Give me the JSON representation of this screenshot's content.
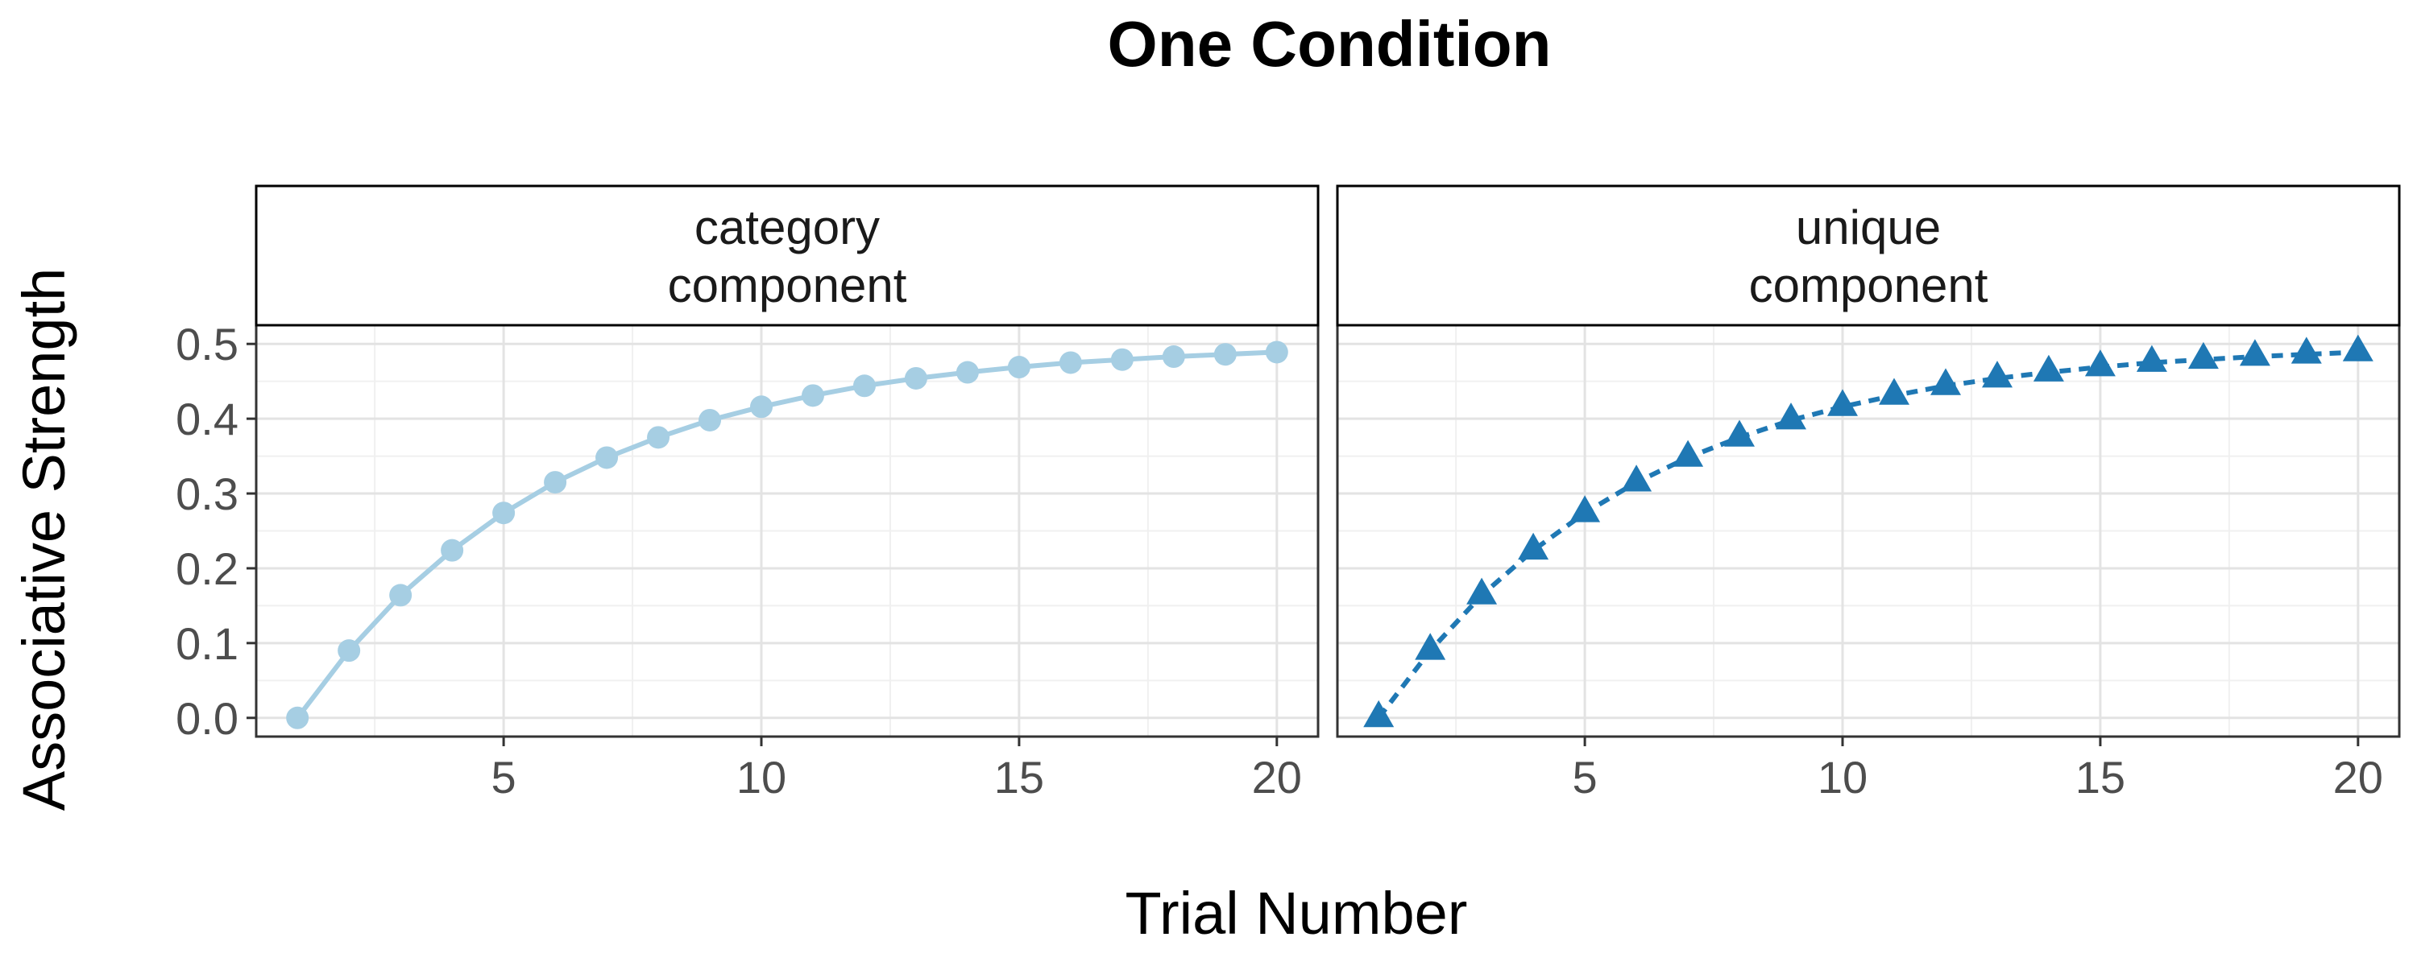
{
  "chart_data": {
    "type": "line",
    "title": "One Condition",
    "xlabel": "Trial Number",
    "ylabel": "Associative Strength",
    "xlim": [
      0.2,
      20.8
    ],
    "ylim": [
      -0.025,
      0.525
    ],
    "x_ticks": [
      {
        "value": 5,
        "label": "5"
      },
      {
        "value": 10,
        "label": "10"
      },
      {
        "value": 15,
        "label": "15"
      },
      {
        "value": 20,
        "label": "20"
      }
    ],
    "y_ticks": [
      {
        "value": 0.0,
        "label": "0.0"
      },
      {
        "value": 0.1,
        "label": "0.1"
      },
      {
        "value": 0.2,
        "label": "0.2"
      },
      {
        "value": 0.3,
        "label": "0.3"
      },
      {
        "value": 0.4,
        "label": "0.4"
      },
      {
        "value": 0.5,
        "label": "0.5"
      }
    ],
    "grid": true,
    "legend": "none",
    "facets": [
      {
        "strip_label": [
          "category",
          "component"
        ],
        "series": [
          {
            "marker": "circle",
            "line_style": "solid",
            "color": "#a6cee3",
            "x": [
              1,
              2,
              3,
              4,
              5,
              6,
              7,
              8,
              9,
              10,
              11,
              12,
              13,
              14,
              15,
              16,
              17,
              18,
              19,
              20
            ],
            "y": [
              0.0,
              0.09,
              0.164,
              0.224,
              0.274,
              0.315,
              0.348,
              0.375,
              0.398,
              0.416,
              0.431,
              0.444,
              0.454,
              0.462,
              0.469,
              0.475,
              0.479,
              0.483,
              0.486,
              0.489
            ]
          }
        ]
      },
      {
        "strip_label": [
          "unique",
          "component"
        ],
        "series": [
          {
            "marker": "triangle",
            "line_style": "dashed",
            "color": "#1f78b4",
            "x": [
              1,
              2,
              3,
              4,
              5,
              6,
              7,
              8,
              9,
              10,
              11,
              12,
              13,
              14,
              15,
              16,
              17,
              18,
              19,
              20
            ],
            "y": [
              0.0,
              0.09,
              0.164,
              0.224,
              0.274,
              0.315,
              0.348,
              0.375,
              0.398,
              0.416,
              0.431,
              0.444,
              0.454,
              0.462,
              0.469,
              0.475,
              0.479,
              0.483,
              0.486,
              0.489
            ]
          }
        ]
      }
    ]
  }
}
